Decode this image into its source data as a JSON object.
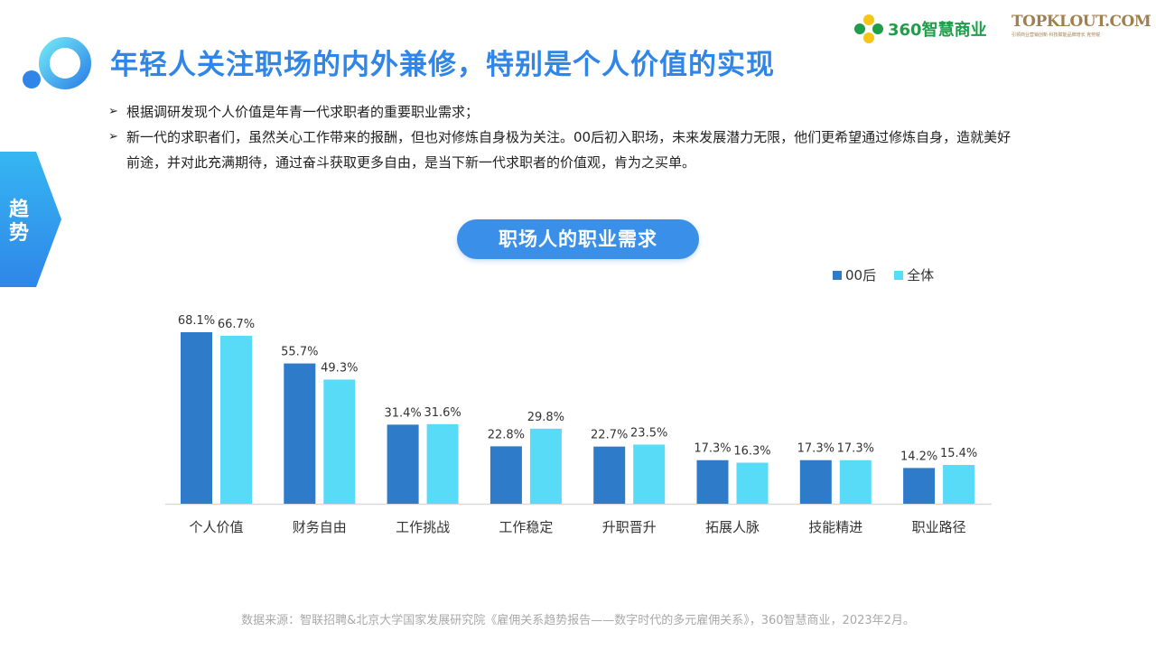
{
  "header": {
    "title": "年轻人关注职场的内外兼修，特别是个人价值的实现",
    "brand_360_text": "360智慧商业",
    "brand_topklout": "TOPKLOUT.COM",
    "brand_topklout_sub": "引领商业营销创新·科技赋能品牌增长  克劳锐"
  },
  "side_tab": {
    "label": "趋势"
  },
  "bullets": [
    "根据调研发现个人价值是年青一代求职者的重要职业需求；",
    "新一代的求职者们，虽然关心工作带来的报酬，但也对修炼自身极为关注。00后初入职场，未来发展潜力无限，他们更希望通过修炼自身，造就美好前途，并对此充满期待，通过奋斗获取更多自由，是当下新一代求职者的价值观，肯为之买单。"
  ],
  "chart_data": {
    "type": "bar",
    "title": "职场人的职业需求",
    "xlabel": "",
    "ylabel": "",
    "categories": [
      "个人价值",
      "财务自由",
      "工作挑战",
      "工作稳定",
      "升职晋升",
      "拓展人脉",
      "技能精进",
      "职业路径"
    ],
    "series": [
      {
        "name": "00后",
        "color": "#2e7bc9",
        "values": [
          68.1,
          55.7,
          31.4,
          22.8,
          22.7,
          17.3,
          17.3,
          14.2
        ],
        "labels": [
          "68.1%",
          "55.7%",
          "31.4%",
          "22.8%",
          "22.7%",
          "17.3%",
          "17.3%",
          "14.2%"
        ]
      },
      {
        "name": "全体",
        "color": "#57dbf7",
        "values": [
          66.7,
          49.3,
          31.6,
          29.8,
          23.5,
          16.3,
          17.3,
          15.4
        ],
        "labels": [
          "66.7%",
          "49.3%",
          "31.6%",
          "29.8%",
          "23.5%",
          "16.3%",
          "17.3%",
          "15.4%"
        ]
      }
    ],
    "ylim": [
      0,
      75
    ],
    "grid": false,
    "legend_position": "top-right"
  },
  "footer": {
    "source": "数据来源：智联招聘&北京大学国家发展研究院《雇佣关系趋势报告——数字时代的多元雇佣关系》，360智慧商业，2023年2月。"
  }
}
